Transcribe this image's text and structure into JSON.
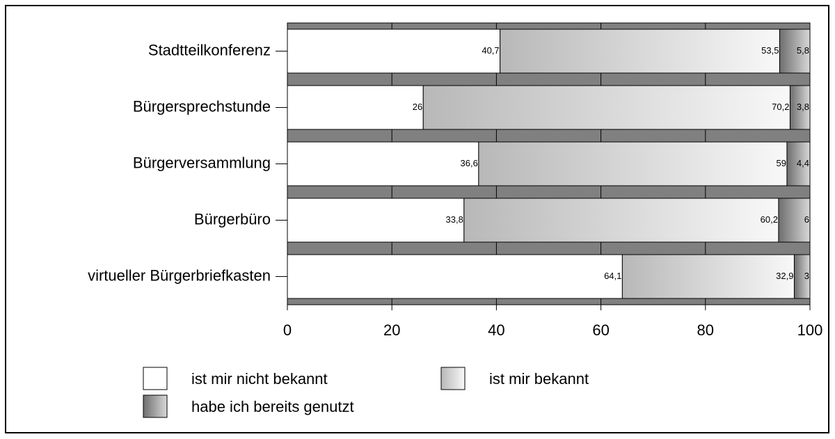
{
  "chart_data": {
    "type": "stacked_barh",
    "categories": [
      "Stadtteilkonferenz",
      "Bürgersprechstunde",
      "Bürgerversammlung",
      "Bürgerbüro",
      "virtueller Bürgerbriefkasten"
    ],
    "series": [
      {
        "name": "ist mir nicht bekannt",
        "color": "#ffffff",
        "values": [
          40.7,
          26,
          36.6,
          33.8,
          64.1
        ],
        "value_labels": [
          "40,7",
          "26",
          "36,6",
          "33,8",
          "64,1"
        ]
      },
      {
        "name": "ist mir bekannt",
        "color": "#b8b8b8",
        "values": [
          53.5,
          70.2,
          59,
          60.2,
          32.9
        ],
        "value_labels": [
          "53,5",
          "70,2",
          "59",
          "60,2",
          "32,9"
        ]
      },
      {
        "name": "habe ich bereits genutzt",
        "color": "#6e6e6e",
        "values": [
          5.8,
          3.8,
          4.4,
          6,
          3
        ],
        "value_labels": [
          "5,8",
          "3,8",
          "4,4",
          "6",
          "3"
        ]
      }
    ],
    "xlim": [
      0,
      100
    ],
    "xticks": [
      0,
      20,
      40,
      60,
      80,
      100
    ],
    "grid": true
  }
}
